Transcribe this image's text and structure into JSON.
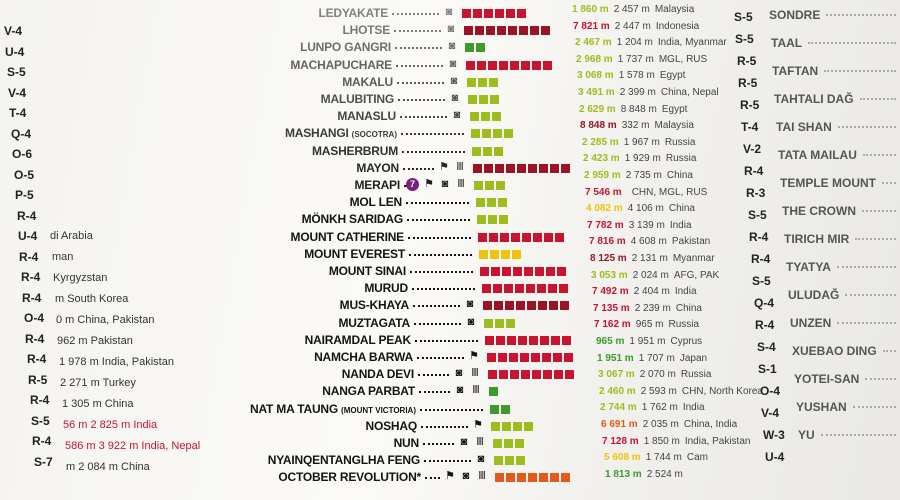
{
  "colors": {
    "dark_red": "#9b1326",
    "red": "#c8142f",
    "orange": "#e35a1a",
    "yellow": "#f0c20a",
    "yellow_green": "#9dbd1f",
    "green": "#3c9b2b",
    "badge": "#7b1f7a"
  },
  "peaks": [
    {
      "name": "LEDYAKATE",
      "icons": [
        "camera-icon"
      ],
      "squares": 6,
      "color": "red"
    },
    {
      "name": "LHOTSE",
      "icons": [
        "camera-icon"
      ],
      "squares": 8,
      "color": "dark_red"
    },
    {
      "name": "LUNPO GANGRI",
      "icons": [
        "camera-icon"
      ],
      "squares": 2,
      "color": "green"
    },
    {
      "name": "MACHAPUCHARE",
      "icons": [
        "camera-icon"
      ],
      "squares": 8,
      "color": "red"
    },
    {
      "name": "MAKALU",
      "icons": [
        "camera-icon"
      ],
      "squares": 3,
      "color": "yellow_green"
    },
    {
      "name": "MALUBITING",
      "icons": [
        "camera-icon"
      ],
      "squares": 3,
      "color": "yellow_green"
    },
    {
      "name": "MANASLU",
      "icons": [
        "camera-icon"
      ],
      "squares": 3,
      "color": "yellow_green"
    },
    {
      "name": "MASHANGI",
      "note": "(SOCOTRA)",
      "icons": [],
      "squares": 4,
      "color": "yellow_green"
    },
    {
      "name": "MASHERBRUM",
      "icons": [],
      "squares": 3,
      "color": "yellow_green"
    },
    {
      "name": "MAYON",
      "icons": [
        "flag-icon",
        "temple-icon"
      ],
      "squares": 9,
      "color": "dark_red"
    },
    {
      "name": "MERAPI",
      "badge": "7",
      "icons": [
        "flag-icon",
        "camera-icon",
        "temple-icon"
      ],
      "squares": 3,
      "color": "yellow_green"
    },
    {
      "name": "MOL LEN",
      "icons": [],
      "squares": 3,
      "color": "yellow_green"
    },
    {
      "name": "MÖNKH SARIDAG",
      "icons": [],
      "squares": 3,
      "color": "yellow_green"
    },
    {
      "name": "MOUNT CATHERINE",
      "icons": [],
      "squares": 8,
      "color": "red"
    },
    {
      "name": "MOUNT EVEREST",
      "icons": [],
      "squares": 4,
      "color": "yellow"
    },
    {
      "name": "MOUNT SINAI",
      "icons": [],
      "squares": 8,
      "color": "red"
    },
    {
      "name": "MURUD",
      "icons": [],
      "squares": 8,
      "color": "red"
    },
    {
      "name": "MUS-KHAYA",
      "icons": [
        "camera-icon"
      ],
      "squares": 8,
      "color": "dark_red"
    },
    {
      "name": "MUZTAGATA",
      "icons": [
        "camera-icon"
      ],
      "squares": 3,
      "color": "yellow_green"
    },
    {
      "name": "NAIRAMDAL PEAK",
      "icons": [],
      "squares": 8,
      "color": "red"
    },
    {
      "name": "NAMCHA BARWA",
      "icons": [
        "flag-icon"
      ],
      "squares": 8,
      "color": "red"
    },
    {
      "name": "NANDA DEVI",
      "icons": [
        "camera-icon",
        "temple-icon"
      ],
      "squares": 8,
      "color": "red"
    },
    {
      "name": "NANGA PARBAT",
      "icons": [
        "camera-icon",
        "temple-icon"
      ],
      "squares": 1,
      "color": "green"
    },
    {
      "name": "NAT MA TAUNG",
      "note": "(MOUNT VICTORIA)",
      "icons": [],
      "squares": 2,
      "color": "green"
    },
    {
      "name": "NOSHAQ",
      "icons": [
        "flag-icon"
      ],
      "squares": 4,
      "color": "yellow_green"
    },
    {
      "name": "NUN",
      "icons": [
        "camera-icon",
        "temple-icon"
      ],
      "squares": 3,
      "color": "yellow_green"
    },
    {
      "name": "NYAINQENTANGLHA FENG",
      "icons": [
        "camera-icon"
      ],
      "squares": 3,
      "color": "yellow_green"
    },
    {
      "name": "OCTOBER REVOLUTION*",
      "icons": [
        "flag-icon",
        "camera-icon",
        "temple-icon"
      ],
      "squares": 7,
      "color": "orange"
    }
  ],
  "values": [
    {
      "elevation": "1 860 m",
      "prominence": "2 457 m",
      "country": "Malaysia",
      "color": "yellow_green"
    },
    {
      "elevation": "7 821 m",
      "prominence": "2 447 m",
      "country": "Indonesia",
      "color": "red"
    },
    {
      "elevation": "2 467 m",
      "prominence": "1 204 m",
      "country": "India, Myanmar",
      "color": "yellow_green"
    },
    {
      "elevation": "2 968 m",
      "prominence": "1 737 m",
      "country": "MGL, RUS",
      "color": "yellow_green"
    },
    {
      "elevation": "3 068 m",
      "prominence": "1 578 m",
      "country": "Egypt",
      "color": "yellow_green"
    },
    {
      "elevation": "3 491 m",
      "prominence": "2 399 m",
      "country": "China, Nepal",
      "color": "yellow_green"
    },
    {
      "elevation": "2 629 m",
      "prominence": "8 848 m",
      "country": "Egypt",
      "color": "yellow_green"
    },
    {
      "elevation": "8 848 m",
      "prominence": "332 m",
      "country": "Malaysia",
      "color": "dark_red"
    },
    {
      "elevation": "2 285 m",
      "prominence": "1 967 m",
      "country": "Russia",
      "color": "yellow_green"
    },
    {
      "elevation": "2 423 m",
      "prominence": "1 929 m",
      "country": "Russia",
      "color": "yellow_green"
    },
    {
      "elevation": "2 959 m",
      "prominence": "2 735 m",
      "country": "China",
      "color": "yellow_green"
    },
    {
      "elevation": "7 546 m",
      "prominence": "",
      "country": "CHN, MGL, RUS",
      "color": "red"
    },
    {
      "elevation": "4 082 m",
      "prominence": "4 106 m",
      "country": "China",
      "color": "yellow"
    },
    {
      "elevation": "7 782 m",
      "prominence": "3 139 m",
      "country": "India",
      "color": "red"
    },
    {
      "elevation": "7 816 m",
      "prominence": "4 608 m",
      "country": "Pakistan",
      "color": "red"
    },
    {
      "elevation": "8 125 m",
      "prominence": "2 131 m",
      "country": "Myanmar",
      "color": "dark_red"
    },
    {
      "elevation": "3 053 m",
      "prominence": "2 024 m",
      "country": "AFG, PAK",
      "color": "yellow_green"
    },
    {
      "elevation": "7 492 m",
      "prominence": "2 404 m",
      "country": "India",
      "color": "red"
    },
    {
      "elevation": "7 135 m",
      "prominence": "2 239 m",
      "country": "China",
      "color": "red"
    },
    {
      "elevation": "7 162 m",
      "prominence": "965 m",
      "country": "Russia",
      "color": "red"
    },
    {
      "elevation": "965 m",
      "prominence": "1 951 m",
      "country": "Cyprus",
      "color": "green"
    },
    {
      "elevation": "1 951 m",
      "prominence": "1 707 m",
      "country": "Japan",
      "color": "green"
    },
    {
      "elevation": "3 067 m",
      "prominence": "2 070 m",
      "country": "Russia",
      "color": "yellow_green"
    },
    {
      "elevation": "2 460 m",
      "prominence": "2 593 m",
      "country": "CHN, North Korea",
      "color": "yellow_green"
    },
    {
      "elevation": "2 744 m",
      "prominence": "1 762 m",
      "country": "India",
      "color": "yellow_green"
    },
    {
      "elevation": "6 691 m",
      "prominence": "2 035 m",
      "country": "China, India",
      "color": "orange"
    },
    {
      "elevation": "7 128 m",
      "prominence": "1 850 m",
      "country": "India, Pakistan",
      "color": "red"
    },
    {
      "elevation": "5 608 m",
      "prominence": "1 744 m",
      "country": "Cam",
      "color": "yellow"
    },
    {
      "elevation": "1 813 m",
      "prominence": "2 524 m",
      "country": "",
      "color": "green"
    }
  ],
  "grid_codes": [
    "S-5",
    "S-5",
    "R-5",
    "R-5",
    "R-5",
    "T-4",
    "V-2",
    "R-4",
    "R-3",
    "S-5",
    "R-4",
    "R-4",
    "S-5",
    "Q-4",
    "R-4",
    "S-4",
    "S-1",
    "O-4",
    "V-4",
    "W-3",
    "U-4"
  ],
  "left_codes": [
    "V-4",
    "U-4",
    "S-5",
    "V-4",
    "T-4",
    "Q-4",
    "O-6",
    "O-5",
    "P-5",
    "R-4",
    "U-4",
    "R-4",
    "R-4",
    "R-4",
    "O-4",
    "R-4",
    "R-4",
    "R-5",
    "R-4",
    "S-5",
    "R-4",
    "S-7"
  ],
  "left_rows": [
    {
      "text": "di Arabia",
      "color": "#333"
    },
    {
      "text": "man",
      "color": "#333"
    },
    {
      "text": "Kyrgyzstan",
      "color": "#333"
    },
    {
      "text": "m  South Korea",
      "color": "#333"
    },
    {
      "text": "0 m  China, Pakistan",
      "color": "#333"
    },
    {
      "text": "962 m  Pakistan",
      "color": "#333"
    },
    {
      "text": "1 978 m  India, Pakistan",
      "color": "#333"
    },
    {
      "text": "2 271 m  Turkey",
      "color": "#333"
    },
    {
      "text": "1 305 m  China",
      "color": "#333"
    },
    {
      "text": "56 m  2 825 m  India",
      "color": "#c8142f"
    },
    {
      "text": "586 m  3 922 m  India, Nepal",
      "color": "#c8142f"
    },
    {
      "text": "m  2 084 m  China",
      "color": "#333"
    }
  ],
  "right_names": [
    "SONDRE",
    "TAAL",
    "TAFTAN",
    "TAHTALI DAĞ",
    "TAI SHAN",
    "TATA MAILAU",
    "TEMPLE MOUNT",
    "THE CROWN",
    "TIRICH MIR",
    "TYATYA",
    "ULUDAĞ",
    "UNZEN",
    "XUEBAO DING",
    "YOTEI-SAN",
    "YUSHAN",
    "YU"
  ]
}
